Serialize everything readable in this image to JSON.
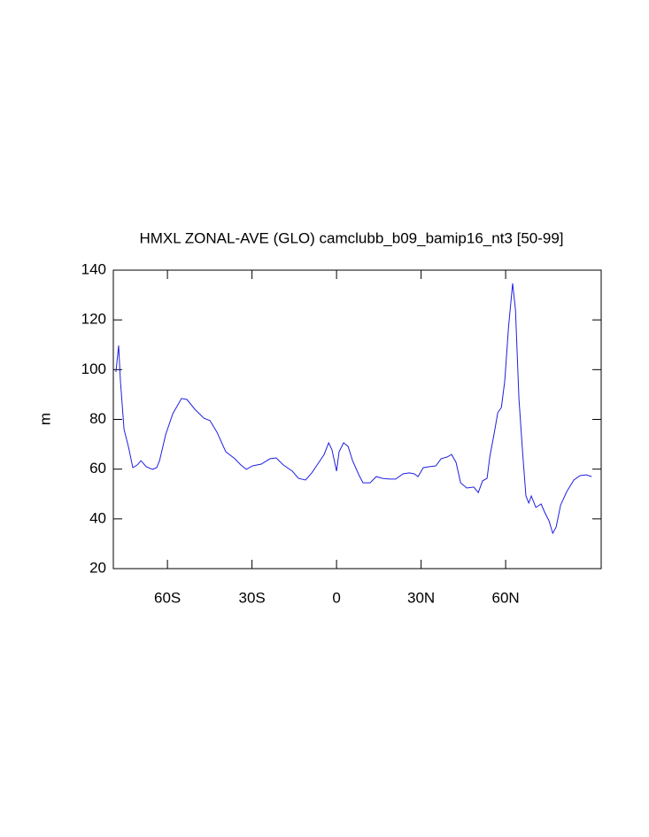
{
  "chart_data": {
    "type": "line",
    "title": "HMXL ZONAL-AVE (GLO) camclubb_b09_bamip16_nt3 [50-99]",
    "y_label": "m",
    "x": [
      -78.3,
      -77.3,
      -76.7,
      -75.4,
      -73.8,
      -72.3,
      -70.7,
      -69.4,
      -67.5,
      -65.3,
      -63.8,
      -62.8,
      -60.6,
      -58.1,
      -55,
      -53.1,
      -50.3,
      -47.1,
      -44.9,
      -42.4,
      -39.3,
      -36.1,
      -34,
      -32,
      -29.8,
      -26.7,
      -23.6,
      -21.4,
      -18.9,
      -15.7,
      -13.5,
      -11,
      -8.8,
      -6.3,
      -4.4,
      -2.8,
      -1.6,
      0,
      0.9,
      2.5,
      4.1,
      5.7,
      7.9,
      9.4,
      11.9,
      14.1,
      16.3,
      18.9,
      21,
      23.6,
      25.8,
      27.6,
      28.9,
      30.8,
      33,
      35.2,
      37.1,
      39.3,
      40.8,
      42.4,
      44,
      46.2,
      48.7,
      50.3,
      51.8,
      53.4,
      54.4,
      55.9,
      57.2,
      58.5,
      59.7,
      61,
      62.5,
      63.5,
      64.7,
      66,
      67.2,
      68.2,
      69.1,
      70.7,
      72.6,
      73.8,
      75.4,
      76.7,
      77.9,
      79.5,
      81.7,
      84.2,
      86.4,
      88.6,
      90.5
    ],
    "series": [
      {
        "name": "HMXL",
        "color": "#1f1fe0",
        "values": [
          99,
          109.7,
          95.5,
          76,
          68.8,
          60.6,
          61.7,
          63.4,
          61,
          59.9,
          60.6,
          63.4,
          74,
          82.3,
          88.4,
          88,
          84.1,
          80.5,
          79.5,
          74.8,
          67,
          64.2,
          61.7,
          59.9,
          61.3,
          62,
          64.2,
          64.5,
          61.7,
          59.2,
          56.3,
          55.6,
          58.5,
          62.7,
          65.9,
          70.6,
          67.7,
          59.2,
          67,
          70.6,
          69.1,
          63.4,
          57.7,
          54.5,
          54.5,
          57,
          56.3,
          56,
          56,
          58.1,
          58.5,
          58.1,
          57,
          60.6,
          61,
          61.3,
          64.2,
          64.9,
          65.9,
          62.7,
          54.5,
          52.4,
          52.8,
          50.6,
          55.3,
          56.3,
          65.2,
          74.1,
          82.7,
          84.8,
          95.5,
          116.9,
          134.7,
          124,
          88.4,
          67,
          49.2,
          46.4,
          49.2,
          44.6,
          46,
          42.8,
          39.2,
          34.2,
          36.7,
          45.6,
          51,
          55.6,
          57.4,
          57.7,
          57
        ]
      }
    ],
    "xlim": [
      -79.2,
      93.9
    ],
    "xticks": [
      {
        "value": -60,
        "label": "60S"
      },
      {
        "value": -30,
        "label": "30S"
      },
      0,
      {
        "value": 30,
        "label": "30N"
      },
      {
        "value": 60,
        "label": "60N"
      }
    ],
    "ylim": [
      20,
      140
    ],
    "yticks": [
      20,
      40,
      60,
      80,
      100,
      120,
      140
    ]
  }
}
